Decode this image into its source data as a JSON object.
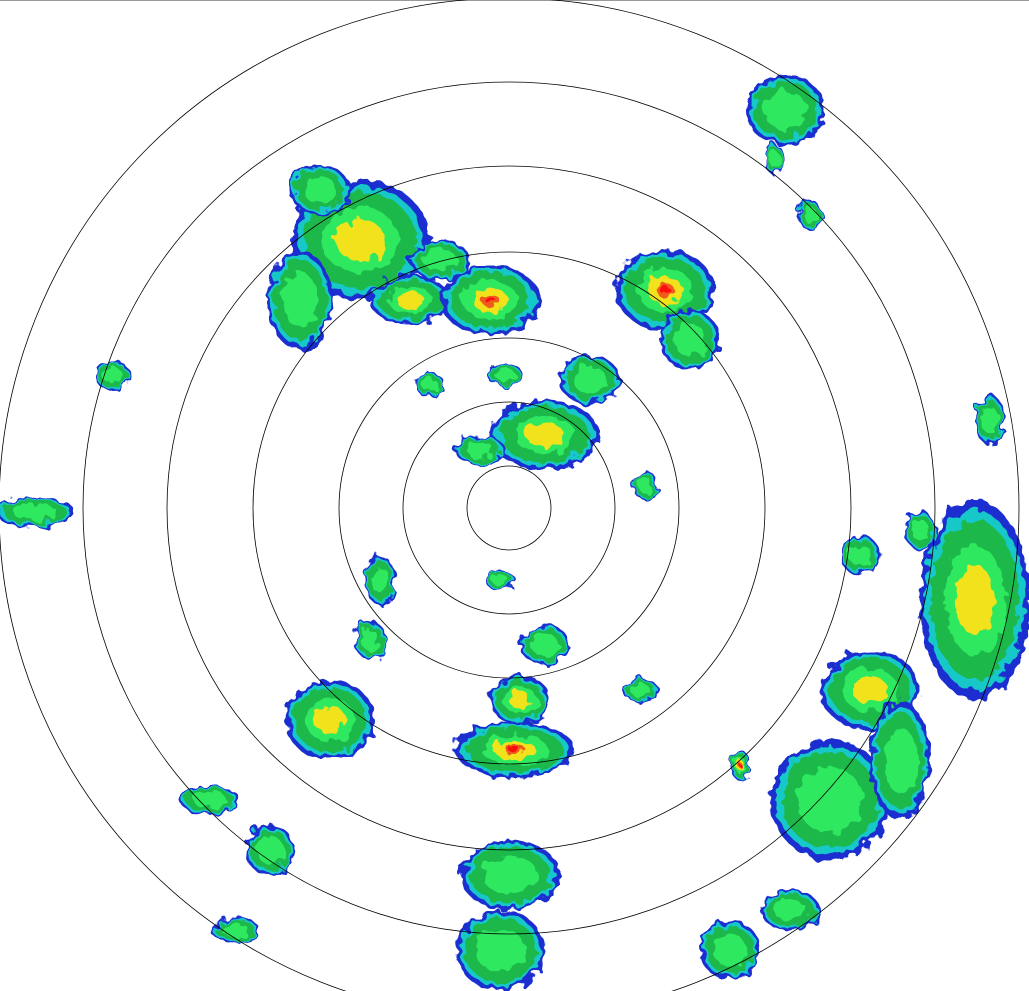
{
  "radar": {
    "range_ring_count": 7,
    "ring_color": "#000000",
    "color_scale": {
      "weak_edge": "#1a2fd0",
      "light": "#19c8c8",
      "moderate": "#1db84a",
      "moderate_bright": "#2ee860",
      "heavy": "#f2e21a",
      "intense": "#f05a1a",
      "extreme": "#ff1010"
    }
  }
}
